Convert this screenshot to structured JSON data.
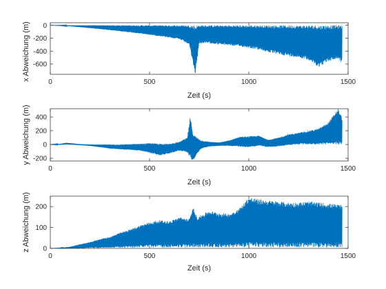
{
  "chart_data": [
    {
      "type": "line",
      "xlabel": "Zeit (s)",
      "ylabel": "x Abweichung (m)",
      "xlim": [
        0,
        1500
      ],
      "ylim": [
        -760,
        40
      ],
      "xticks": [
        0,
        500,
        1000,
        1500
      ],
      "yticks": [
        0,
        -200,
        -400,
        -600
      ],
      "color": "#0072BD",
      "series": [
        {
          "x": [
            0,
            50,
            100,
            150,
            200,
            250,
            300,
            350,
            400,
            450,
            500,
            550,
            600,
            650,
            700,
            720,
            730,
            750,
            800,
            850,
            900,
            950,
            1000,
            1050,
            1100,
            1150,
            1200,
            1250,
            1300,
            1350,
            1400,
            1450,
            1470
          ],
          "upper": [
            0,
            0,
            0,
            0,
            0,
            0,
            0,
            0,
            0,
            0,
            0,
            0,
            0,
            0,
            0,
            0,
            0,
            0,
            0,
            0,
            0,
            0,
            0,
            0,
            0,
            0,
            0,
            0,
            0,
            0,
            0,
            0,
            0
          ],
          "lower": [
            0,
            -5,
            -15,
            -30,
            -45,
            -60,
            -75,
            -95,
            -110,
            -130,
            -150,
            -170,
            -190,
            -220,
            -300,
            -620,
            -760,
            -280,
            -280,
            -300,
            -310,
            -330,
            -350,
            -380,
            -420,
            -450,
            -480,
            -500,
            -540,
            -650,
            -560,
            -520,
            -590
          ]
        }
      ]
    },
    {
      "type": "line",
      "xlabel": "Zeit (s)",
      "ylabel": "y Abweichung (m)",
      "xlim": [
        0,
        1500
      ],
      "ylim": [
        -240,
        520
      ],
      "xticks": [
        0,
        500,
        1000,
        1500
      ],
      "yticks": [
        400,
        200,
        0,
        -200
      ],
      "color": "#0072BD",
      "series": [
        {
          "x": [
            0,
            50,
            80,
            120,
            150,
            200,
            250,
            300,
            350,
            400,
            450,
            500,
            550,
            600,
            650,
            690,
            705,
            720,
            740,
            760,
            800,
            850,
            900,
            950,
            1000,
            1050,
            1100,
            1150,
            1200,
            1250,
            1300,
            1350,
            1400,
            1450,
            1470
          ],
          "upper": [
            0,
            10,
            25,
            15,
            5,
            0,
            0,
            0,
            0,
            5,
            10,
            20,
            15,
            10,
            40,
            100,
            400,
            150,
            100,
            60,
            40,
            30,
            60,
            110,
            120,
            130,
            70,
            100,
            150,
            170,
            200,
            230,
            320,
            520,
            390
          ],
          "lower": [
            0,
            -5,
            0,
            -5,
            -10,
            -20,
            -40,
            -60,
            -70,
            -80,
            -90,
            -120,
            -160,
            -130,
            -90,
            -120,
            -200,
            -230,
            -130,
            -60,
            -30,
            -20,
            -20,
            -30,
            -40,
            -20,
            -40,
            -30,
            -10,
            0,
            0,
            0,
            0,
            0,
            0
          ]
        }
      ]
    },
    {
      "type": "line",
      "xlabel": "Zeit (s)",
      "ylabel": "z Abweichung (m)",
      "xlim": [
        0,
        1500
      ],
      "ylim": [
        0,
        250
      ],
      "xticks": [
        0,
        500,
        1000,
        1500
      ],
      "yticks": [
        0,
        100,
        200
      ],
      "color": "#0072BD",
      "series": [
        {
          "x": [
            0,
            50,
            100,
            150,
            200,
            250,
            300,
            350,
            400,
            450,
            500,
            550,
            600,
            650,
            700,
            720,
            740,
            800,
            850,
            900,
            950,
            1000,
            1050,
            1100,
            1150,
            1200,
            1250,
            1300,
            1350,
            1400,
            1450,
            1470
          ],
          "upper": [
            0,
            2,
            8,
            20,
            30,
            45,
            55,
            75,
            90,
            110,
            125,
            135,
            130,
            150,
            140,
            195,
            150,
            180,
            170,
            165,
            190,
            245,
            235,
            230,
            225,
            220,
            220,
            225,
            220,
            215,
            210,
            205
          ],
          "lower": [
            0,
            0,
            0,
            0,
            2,
            2,
            3,
            3,
            3,
            5,
            5,
            5,
            5,
            5,
            5,
            5,
            5,
            5,
            5,
            5,
            5,
            5,
            5,
            5,
            5,
            5,
            5,
            5,
            5,
            5,
            5,
            5
          ]
        }
      ]
    }
  ]
}
